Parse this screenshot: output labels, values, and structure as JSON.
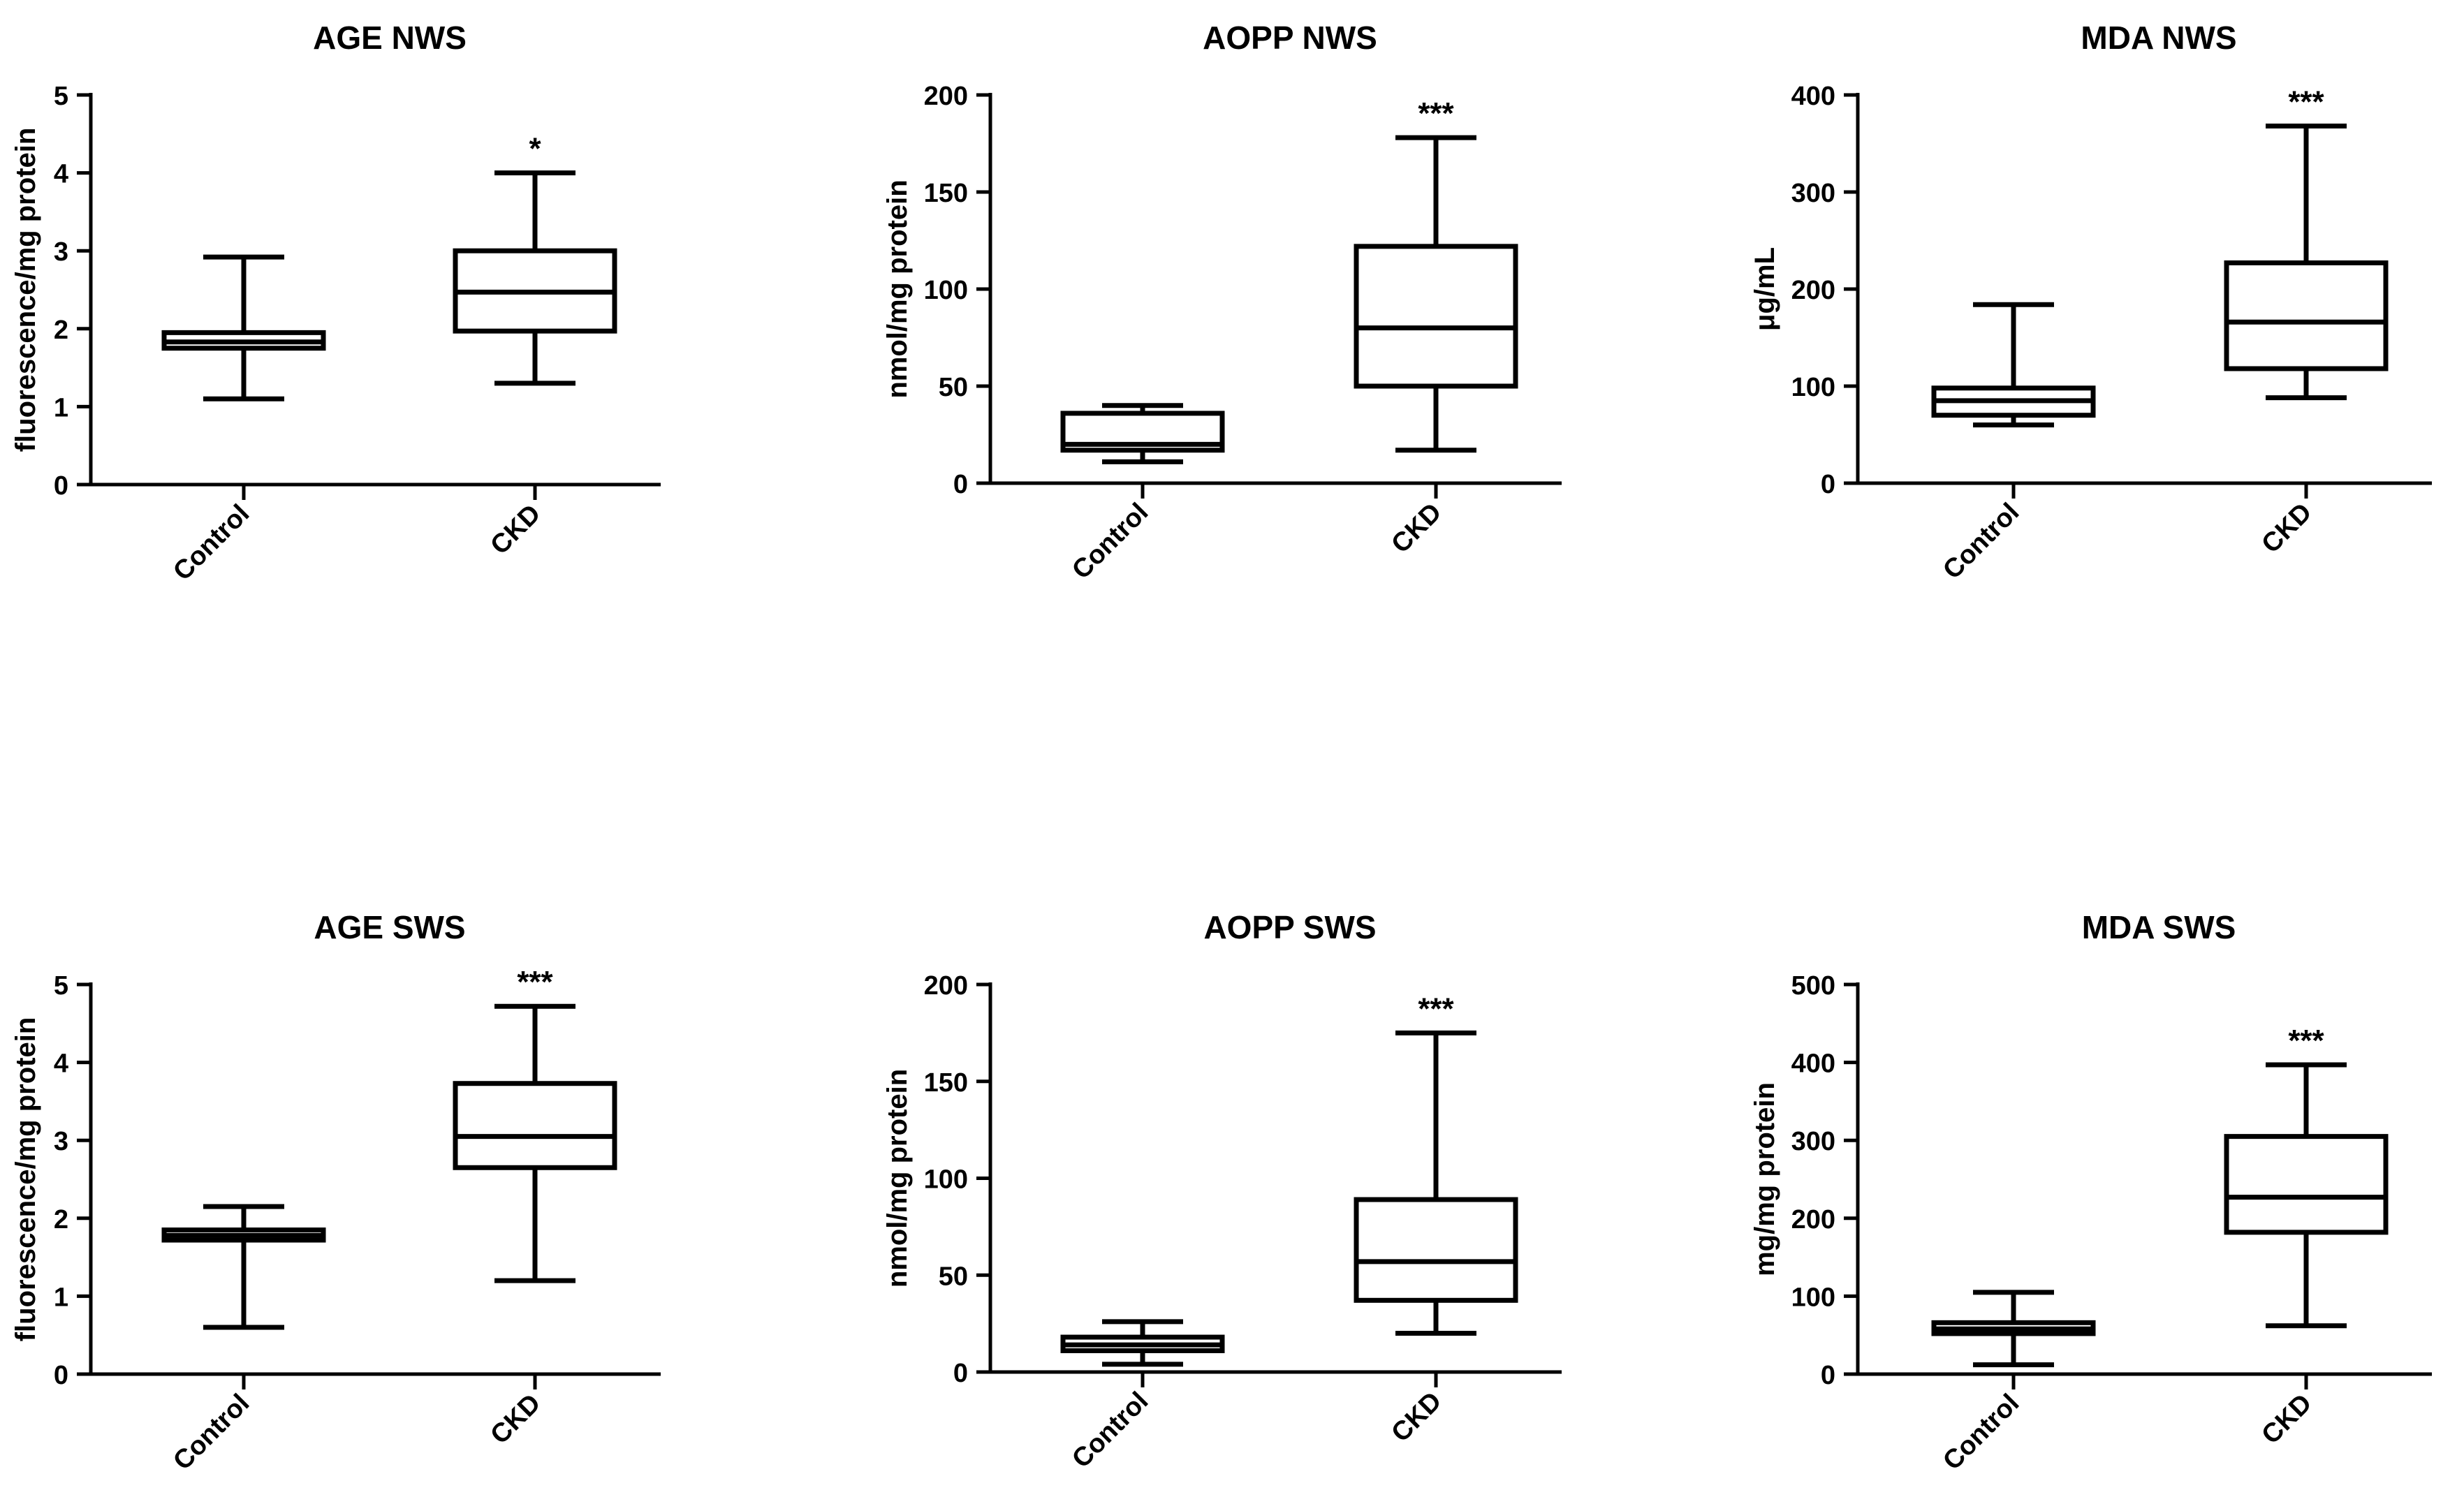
{
  "chart_data": [
    {
      "type": "box",
      "title": "AGE NWS",
      "xlabel": "",
      "ylabel": "fluorescence/mg protein",
      "ylim": [
        0,
        5
      ],
      "yticks": [
        0,
        1,
        2,
        3,
        4,
        5
      ],
      "yticklabels": [
        "0",
        "1",
        "2",
        "3",
        "4",
        "5"
      ],
      "categories": [
        "Control",
        "CKD"
      ],
      "boxes": [
        {
          "name": "Control",
          "min": 1.1,
          "q1": 1.75,
          "median": 1.83,
          "q3": 1.95,
          "max": 2.92,
          "annotation": ""
        },
        {
          "name": "CKD",
          "min": 1.3,
          "q1": 1.97,
          "median": 2.47,
          "q3": 3.0,
          "max": 4.0,
          "annotation": "*"
        }
      ]
    },
    {
      "type": "box",
      "title": "AOPP NWS",
      "xlabel": "",
      "ylabel": "nmol/mg protein",
      "ylim": [
        0,
        200
      ],
      "yticks": [
        0,
        50,
        100,
        150,
        200
      ],
      "yticklabels": [
        "0",
        "50",
        "100",
        "150",
        "200"
      ],
      "categories": [
        "Control",
        "CKD"
      ],
      "boxes": [
        {
          "name": "Control",
          "min": 11,
          "q1": 17,
          "median": 20,
          "q3": 36,
          "max": 40,
          "annotation": ""
        },
        {
          "name": "CKD",
          "min": 17,
          "q1": 50,
          "median": 80,
          "q3": 122,
          "max": 178,
          "annotation": "***"
        }
      ]
    },
    {
      "type": "box",
      "title": "MDA NWS",
      "xlabel": "",
      "ylabel": "μg/mL",
      "ylim": [
        0,
        400
      ],
      "yticks": [
        0,
        100,
        200,
        300,
        400
      ],
      "yticklabels": [
        "0",
        "100",
        "200",
        "300",
        "400"
      ],
      "categories": [
        "Control",
        "CKD"
      ],
      "boxes": [
        {
          "name": "Control",
          "min": 60,
          "q1": 70,
          "median": 85,
          "q3": 98,
          "max": 184,
          "annotation": ""
        },
        {
          "name": "CKD",
          "min": 88,
          "q1": 118,
          "median": 166,
          "q3": 227,
          "max": 368,
          "annotation": "***"
        }
      ]
    },
    {
      "type": "box",
      "title": "AGE SWS",
      "xlabel": "",
      "ylabel": "fluorescence/mg protein",
      "ylim": [
        0,
        5
      ],
      "yticks": [
        0,
        1,
        2,
        3,
        4,
        5
      ],
      "yticklabels": [
        "0",
        "1",
        "2",
        "3",
        "4",
        "5"
      ],
      "categories": [
        "Control",
        "CKD"
      ],
      "boxes": [
        {
          "name": "Control",
          "min": 0.6,
          "q1": 1.72,
          "median": 1.78,
          "q3": 1.85,
          "max": 2.15,
          "annotation": ""
        },
        {
          "name": "CKD",
          "min": 1.2,
          "q1": 2.65,
          "median": 3.05,
          "q3": 3.73,
          "max": 4.72,
          "annotation": "***"
        }
      ]
    },
    {
      "type": "box",
      "title": "AOPP SWS",
      "xlabel": "",
      "ylabel": "nmol/mg protein",
      "ylim": [
        0,
        200
      ],
      "yticks": [
        0,
        50,
        100,
        150,
        200
      ],
      "yticklabels": [
        "0",
        "50",
        "100",
        "150",
        "200"
      ],
      "categories": [
        "Control",
        "CKD"
      ],
      "boxes": [
        {
          "name": "Control",
          "min": 4,
          "q1": 11,
          "median": 14,
          "q3": 18,
          "max": 26,
          "annotation": ""
        },
        {
          "name": "CKD",
          "min": 20,
          "q1": 37,
          "median": 57,
          "q3": 89,
          "max": 175,
          "annotation": "***"
        }
      ]
    },
    {
      "type": "box",
      "title": "MDA SWS",
      "xlabel": "",
      "ylabel": "mg/mg protein",
      "ylim": [
        0,
        500
      ],
      "yticks": [
        0,
        100,
        200,
        300,
        400,
        500
      ],
      "yticklabels": [
        "0",
        "100",
        "200",
        "300",
        "400",
        "500"
      ],
      "categories": [
        "Control",
        "CKD"
      ],
      "boxes": [
        {
          "name": "Control",
          "min": 12,
          "q1": 52,
          "median": 58,
          "q3": 66,
          "max": 105,
          "annotation": ""
        },
        {
          "name": "CKD",
          "min": 62,
          "q1": 182,
          "median": 227,
          "q3": 305,
          "max": 397,
          "annotation": "***"
        }
      ]
    }
  ]
}
